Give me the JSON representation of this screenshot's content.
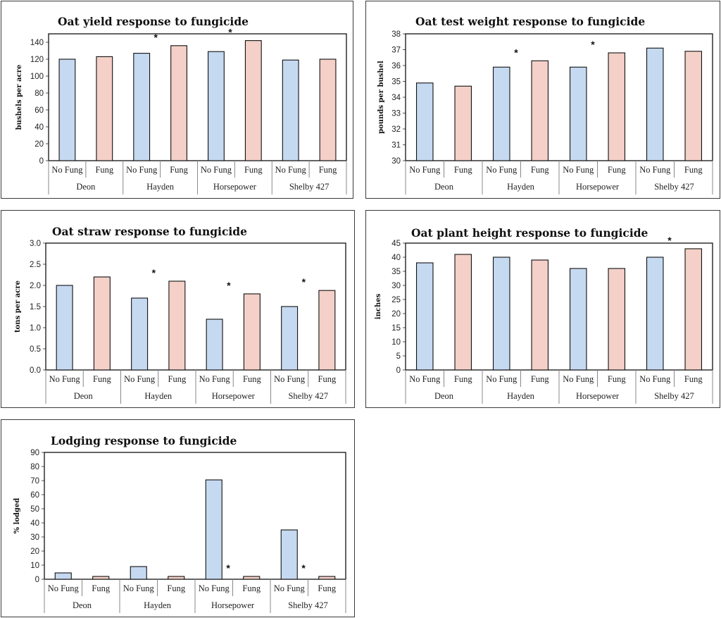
{
  "colors": {
    "no_fung": "#c5d9f1",
    "fung": "#f4d0c8",
    "outline": "#111111"
  },
  "chart_data": [
    {
      "type": "bar",
      "title": "Oat yield response to fungicide",
      "ylabel": "bushels per acre",
      "ylim": [
        0,
        150
      ],
      "yticks": [
        0,
        20,
        40,
        60,
        80,
        100,
        120,
        140
      ],
      "categories": [
        "No Fung",
        "Fung",
        "No Fung",
        "Fung",
        "No Fung",
        "Fung",
        "No Fung",
        "Fung"
      ],
      "groups": [
        "Deon",
        "Hayden",
        "Horsepower",
        "Shelby 427"
      ],
      "values": [
        120,
        123,
        127,
        136,
        129,
        142,
        119,
        120
      ],
      "significant": [
        false,
        false,
        false,
        true,
        false,
        true,
        false,
        false
      ],
      "star": "*"
    },
    {
      "type": "bar",
      "title": "Oat test weight response to fungicide",
      "ylabel": "pounds per bushel",
      "ylim": [
        30,
        38
      ],
      "yticks": [
        30,
        31,
        32,
        33,
        34,
        35,
        36,
        37,
        38
      ],
      "categories": [
        "No Fung",
        "Fung",
        "No Fung",
        "Fung",
        "No Fung",
        "Fung",
        "No Fung",
        "Fung"
      ],
      "groups": [
        "Deon",
        "Hayden",
        "Horsepower",
        "Shelby 427"
      ],
      "values": [
        34.9,
        34.7,
        35.9,
        36.3,
        35.9,
        36.8,
        37.1,
        36.9
      ],
      "significant": [
        false,
        false,
        false,
        true,
        false,
        true,
        false,
        false
      ],
      "star": "*"
    },
    {
      "type": "bar",
      "title": "Oat straw response to fungicide",
      "ylabel": "tons per acre",
      "ylim": [
        0,
        3
      ],
      "yticks": [
        "0.0",
        "0.5",
        "1.0",
        "1.5",
        "2.0",
        "2.5",
        "3.0"
      ],
      "categories": [
        "No Fung",
        "Fung",
        "No Fung",
        "Fung",
        "No Fung",
        "Fung",
        "No Fung",
        "Fung"
      ],
      "groups": [
        "Deon",
        "Hayden",
        "Horsepower",
        "Shelby 427"
      ],
      "values": [
        2.0,
        2.2,
        1.7,
        2.1,
        1.2,
        1.8,
        1.5,
        1.88
      ],
      "significant": [
        false,
        false,
        false,
        true,
        false,
        true,
        false,
        true
      ],
      "star": "*"
    },
    {
      "type": "bar",
      "title": "Oat plant height response to fungicide",
      "ylabel": "inches",
      "ylim": [
        0,
        45
      ],
      "yticks": [
        0,
        5,
        10,
        15,
        20,
        25,
        30,
        35,
        40,
        45
      ],
      "categories": [
        "No Fung",
        "Fung",
        "No Fung",
        "Fung",
        "No Fung",
        "Fung",
        "No Fung",
        "Fung"
      ],
      "groups": [
        "Deon",
        "Hayden",
        "Horsepower",
        "Shelby 427"
      ],
      "values": [
        38,
        41,
        40,
        39,
        36,
        36,
        40,
        43
      ],
      "significant": [
        false,
        false,
        false,
        false,
        false,
        false,
        false,
        true
      ],
      "star": "*"
    },
    {
      "type": "bar",
      "title": "Lodging response to fungicide",
      "ylabel": "% lodged",
      "ylim": [
        0,
        90
      ],
      "yticks": [
        0,
        10,
        20,
        30,
        40,
        50,
        60,
        70,
        80,
        90
      ],
      "categories": [
        "No Fung",
        "Fung",
        "No Fung",
        "Fung",
        "No Fung",
        "Fung",
        "No Fung",
        "Fung"
      ],
      "groups": [
        "Deon",
        "Hayden",
        "Horsepower",
        "Shelby 427"
      ],
      "values": [
        4.5,
        2,
        9,
        2,
        70.5,
        2,
        35,
        2
      ],
      "significant": [
        false,
        false,
        false,
        false,
        false,
        true,
        false,
        true
      ],
      "star": "*"
    }
  ]
}
